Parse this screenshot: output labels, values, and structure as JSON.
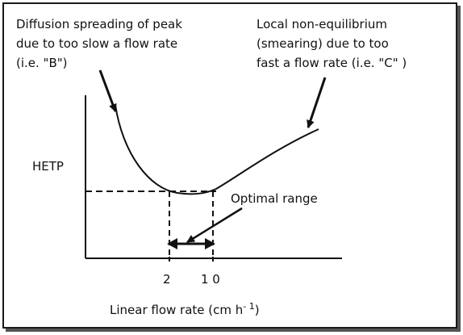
{
  "annotations": {
    "left": [
      "Diffusion spreading of peak",
      "due to too slow a flow rate",
      "(i.e.  \"B\")"
    ],
    "right": [
      "Local  non-equilibrium",
      "(smearing) due to too",
      "fast a flow rate (i.e. \"C\" )"
    ]
  },
  "axes": {
    "y_label": "HETP",
    "x_label": "Linear flow rate  (cm h",
    "x_unit_exponent": "- 1",
    "x_label_close": ")",
    "tick_left": "2",
    "tick_right": "1 0"
  },
  "optimal_label": "Optimal range",
  "colors": {
    "ink": "#111111",
    "frame_shadow": "#555555"
  }
}
